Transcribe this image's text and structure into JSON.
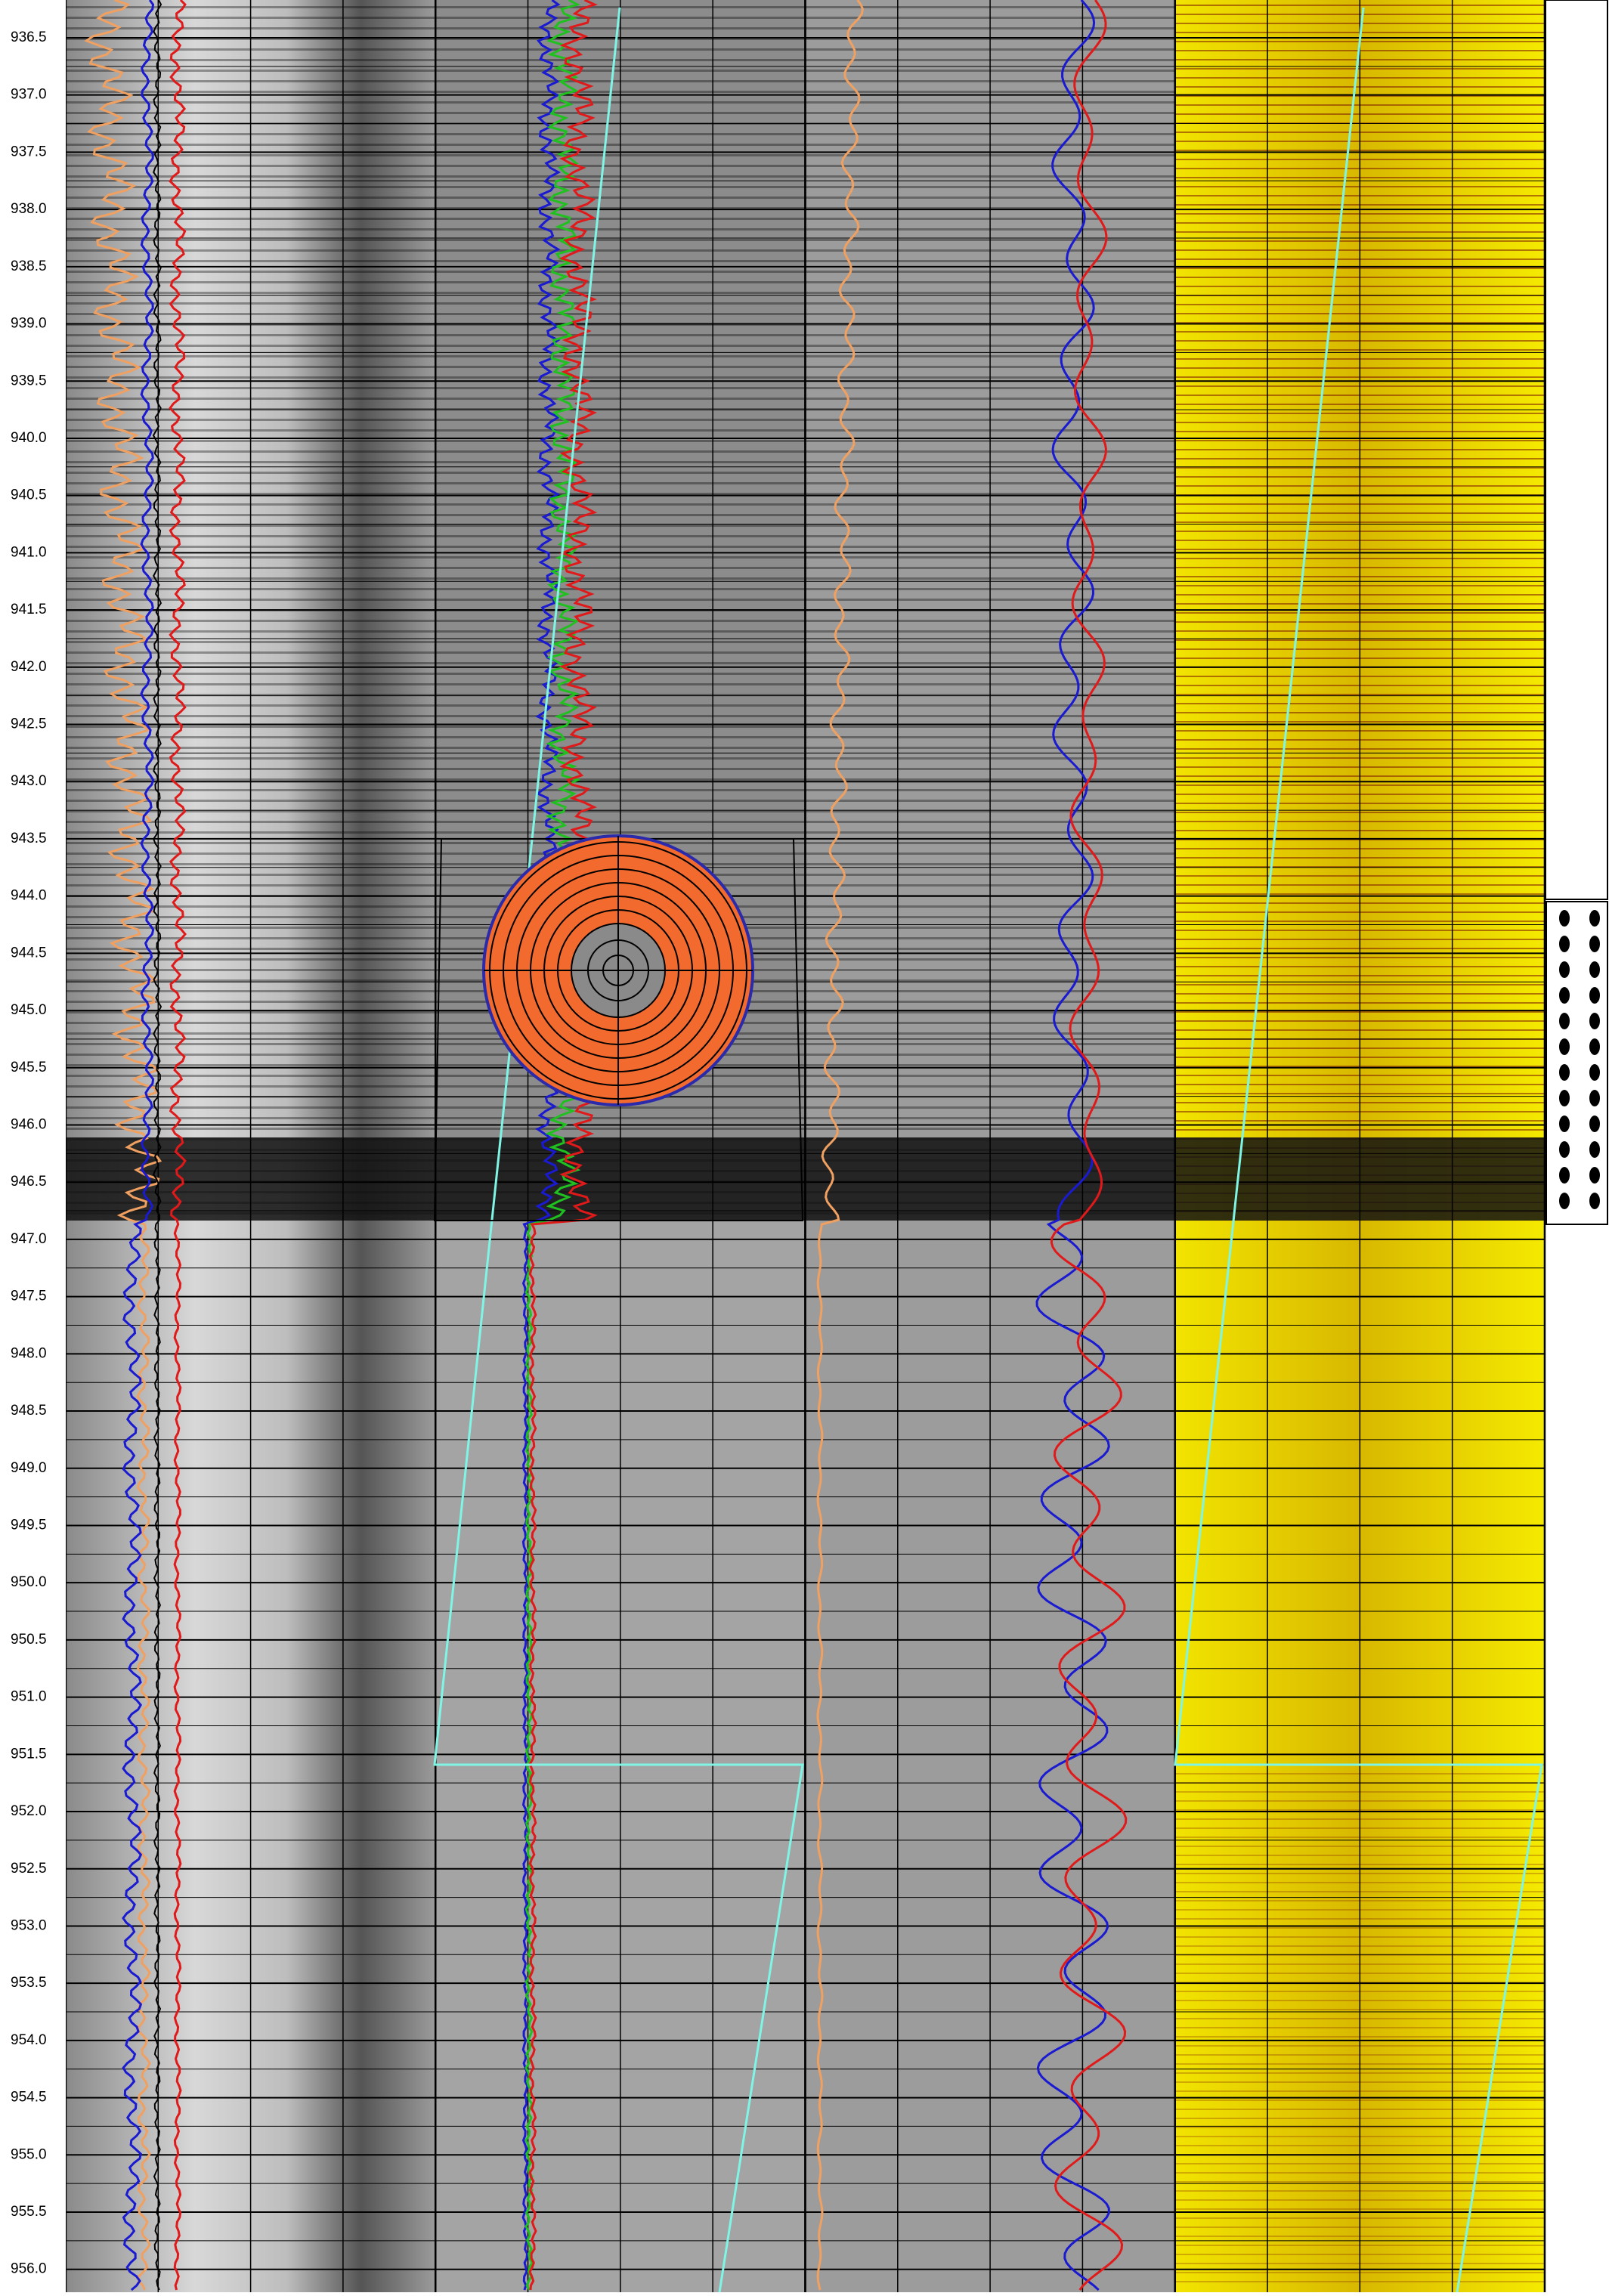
{
  "chart_data": {
    "type": "well-log",
    "ylim": [
      936.17,
      956.2
    ],
    "yticks": [
      {
        "value": 936.5,
        "label": "936.5"
      },
      {
        "value": 937,
        "label": "937.0"
      },
      {
        "value": 937.5,
        "label": "937.5"
      },
      {
        "value": 938,
        "label": "938.0"
      },
      {
        "value": 938.5,
        "label": "938.5"
      },
      {
        "value": 939,
        "label": "939.0"
      },
      {
        "value": 939.5,
        "label": "939.5"
      },
      {
        "value": 940,
        "label": "940.0"
      },
      {
        "value": 940.5,
        "label": "940.5"
      },
      {
        "value": 941,
        "label": "941.0"
      },
      {
        "value": 941.5,
        "label": "941.5"
      },
      {
        "value": 942,
        "label": "942.0"
      },
      {
        "value": 942.5,
        "label": "942.5"
      },
      {
        "value": 943,
        "label": "943.0"
      },
      {
        "value": 943.5,
        "label": "943.5"
      },
      {
        "value": 944,
        "label": "944.0"
      },
      {
        "value": 944.5,
        "label": "944.5"
      },
      {
        "value": 945,
        "label": "945.0"
      },
      {
        "value": 945.5,
        "label": "945.5"
      },
      {
        "value": 946,
        "label": "946.0"
      },
      {
        "value": 946.5,
        "label": "946.5"
      },
      {
        "value": 947,
        "label": "947.0"
      },
      {
        "value": 947.5,
        "label": "947.5"
      },
      {
        "value": 948,
        "label": "948.0"
      },
      {
        "value": 948.5,
        "label": "948.5"
      },
      {
        "value": 949,
        "label": "949.0"
      },
      {
        "value": 949.5,
        "label": "949.5"
      },
      {
        "value": 950,
        "label": "950.0"
      },
      {
        "value": 950.5,
        "label": "950.5"
      },
      {
        "value": 951,
        "label": "951.0"
      },
      {
        "value": 951.5,
        "label": "951.5"
      },
      {
        "value": 952,
        "label": "952.0"
      },
      {
        "value": 952.5,
        "label": "952.5"
      },
      {
        "value": 953,
        "label": "953.0"
      },
      {
        "value": 953.5,
        "label": "953.5"
      },
      {
        "value": 954,
        "label": "954.0"
      },
      {
        "value": 954.5,
        "label": "954.5"
      },
      {
        "value": 955,
        "label": "955.0"
      },
      {
        "value": 955.5,
        "label": "955.5"
      },
      {
        "value": 956,
        "label": "956.0"
      }
    ],
    "grid": true
  }
}
